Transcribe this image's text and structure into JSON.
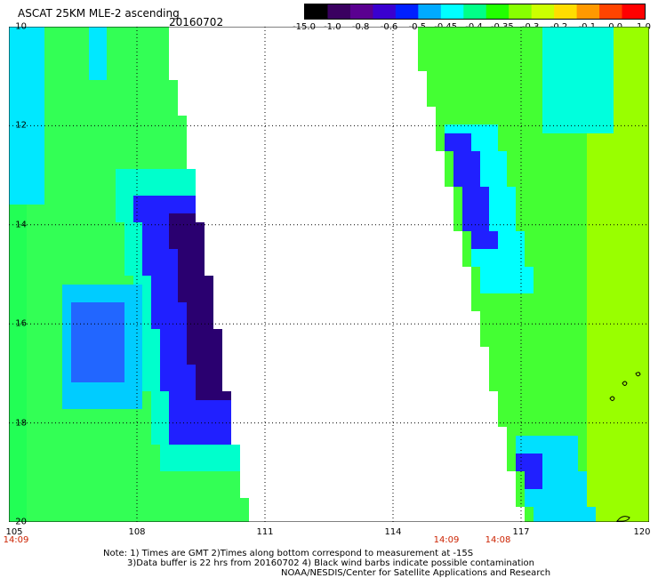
{
  "header": {
    "title": "ASCAT 25KM MLE-2 ascending",
    "date": "20160702"
  },
  "colorbar": {
    "labels": [
      "-15.0",
      "-1.0",
      "-0.8",
      "-0.6",
      "-0.5",
      "-0.45",
      "-0.4",
      "-0.35",
      "-0.3",
      "-0.2",
      "-0.1",
      "0.0",
      "1.0"
    ],
    "colors": [
      "#000000",
      "#3a0060",
      "#5a0090",
      "#3a00d0",
      "#0020ff",
      "#00aaff",
      "#00ffff",
      "#00ff88",
      "#22ff00",
      "#88ff00",
      "#ccff00",
      "#ffdd00",
      "#ff9900",
      "#ff4400",
      "#ff0000"
    ]
  },
  "map": {
    "lat_labels": [
      "10",
      "12",
      "14",
      "16",
      "18",
      "20"
    ],
    "lon_labels": [
      "105",
      "108",
      "111",
      "114",
      "117",
      "120"
    ],
    "time_labels": [
      "14:09",
      "14:09",
      "14:08"
    ],
    "lat_range": [
      10,
      20
    ],
    "lon_range": [
      105,
      120
    ]
  },
  "notes": {
    "line1": "Note: 1) Times are GMT 2)Times along bottom correspond to measurement at -15S",
    "line2": "3)Data buffer is 22 hrs from 20160702 4) Black wind barbs indicate possible contamination",
    "line3": "NOAA/NESDIS/Center for Satellite Applications and Research"
  }
}
